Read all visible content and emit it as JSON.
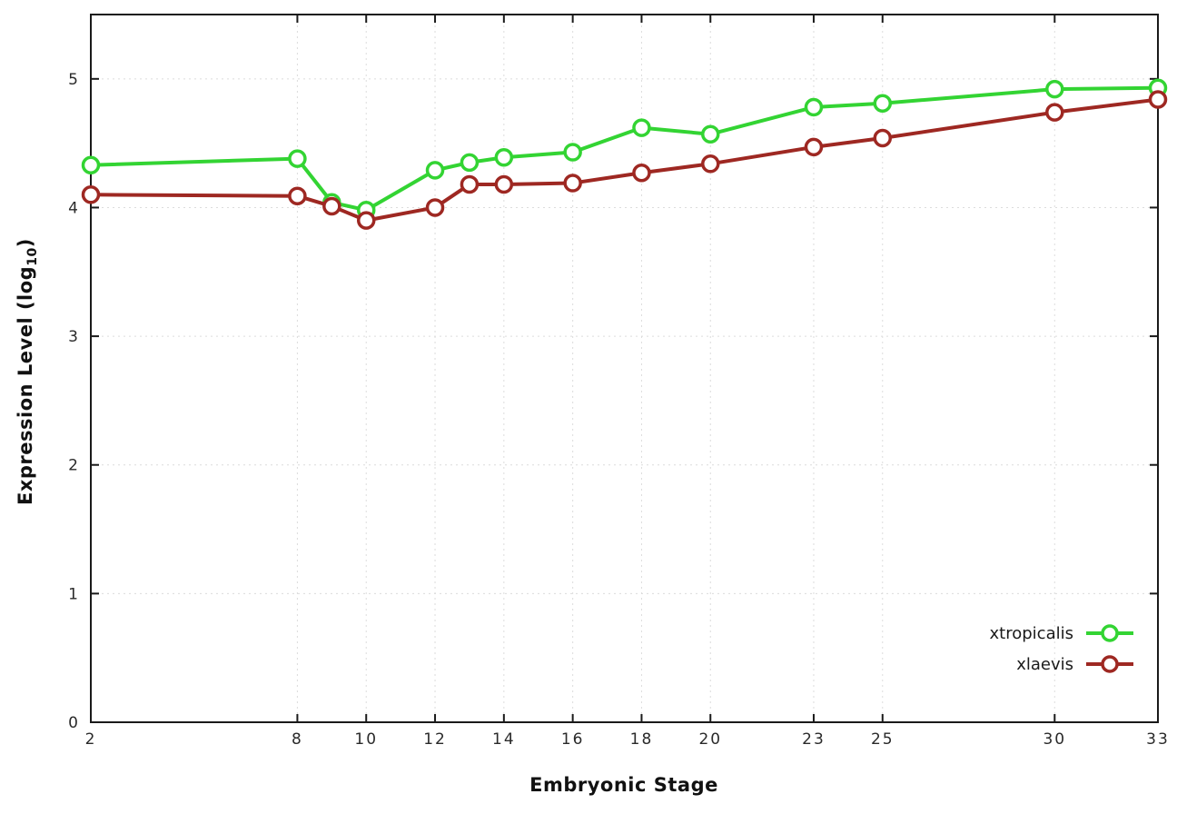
{
  "chart_data": {
    "type": "line",
    "title": "",
    "xlabel": "Embryonic Stage",
    "ylabel": "Expression Level (log10)",
    "ylabel_parts": {
      "main": "Expression Level (log",
      "sub": "10",
      "close": ")"
    },
    "x": [
      2,
      8,
      9,
      10,
      12,
      13,
      14,
      16,
      18,
      20,
      23,
      25,
      30,
      33
    ],
    "xticks": [
      2,
      8,
      10,
      12,
      14,
      16,
      18,
      20,
      23,
      25,
      30,
      33
    ],
    "yticks": [
      0,
      1,
      2,
      3,
      4,
      5
    ],
    "xlim": [
      2,
      33
    ],
    "ylim": [
      0,
      5.5
    ],
    "grid": true,
    "legend_position": "bottom-right",
    "marker": "open-circle",
    "series": [
      {
        "name": "xtropicalis",
        "color": "#33d433",
        "values": [
          4.33,
          4.38,
          4.04,
          3.98,
          4.29,
          4.35,
          4.39,
          4.43,
          4.62,
          4.57,
          4.78,
          4.81,
          4.92,
          4.93
        ]
      },
      {
        "name": "xlaevis",
        "color": "#9e2822",
        "values": [
          4.1,
          4.09,
          4.01,
          3.9,
          4.0,
          4.18,
          4.18,
          4.19,
          4.27,
          4.34,
          4.47,
          4.54,
          4.74,
          4.84
        ]
      }
    ],
    "colors": {
      "axis": "#1a1a1a",
      "grid": "#dcdcdc",
      "tick_label": "#2a2a2a",
      "background": "#ffffff"
    }
  }
}
